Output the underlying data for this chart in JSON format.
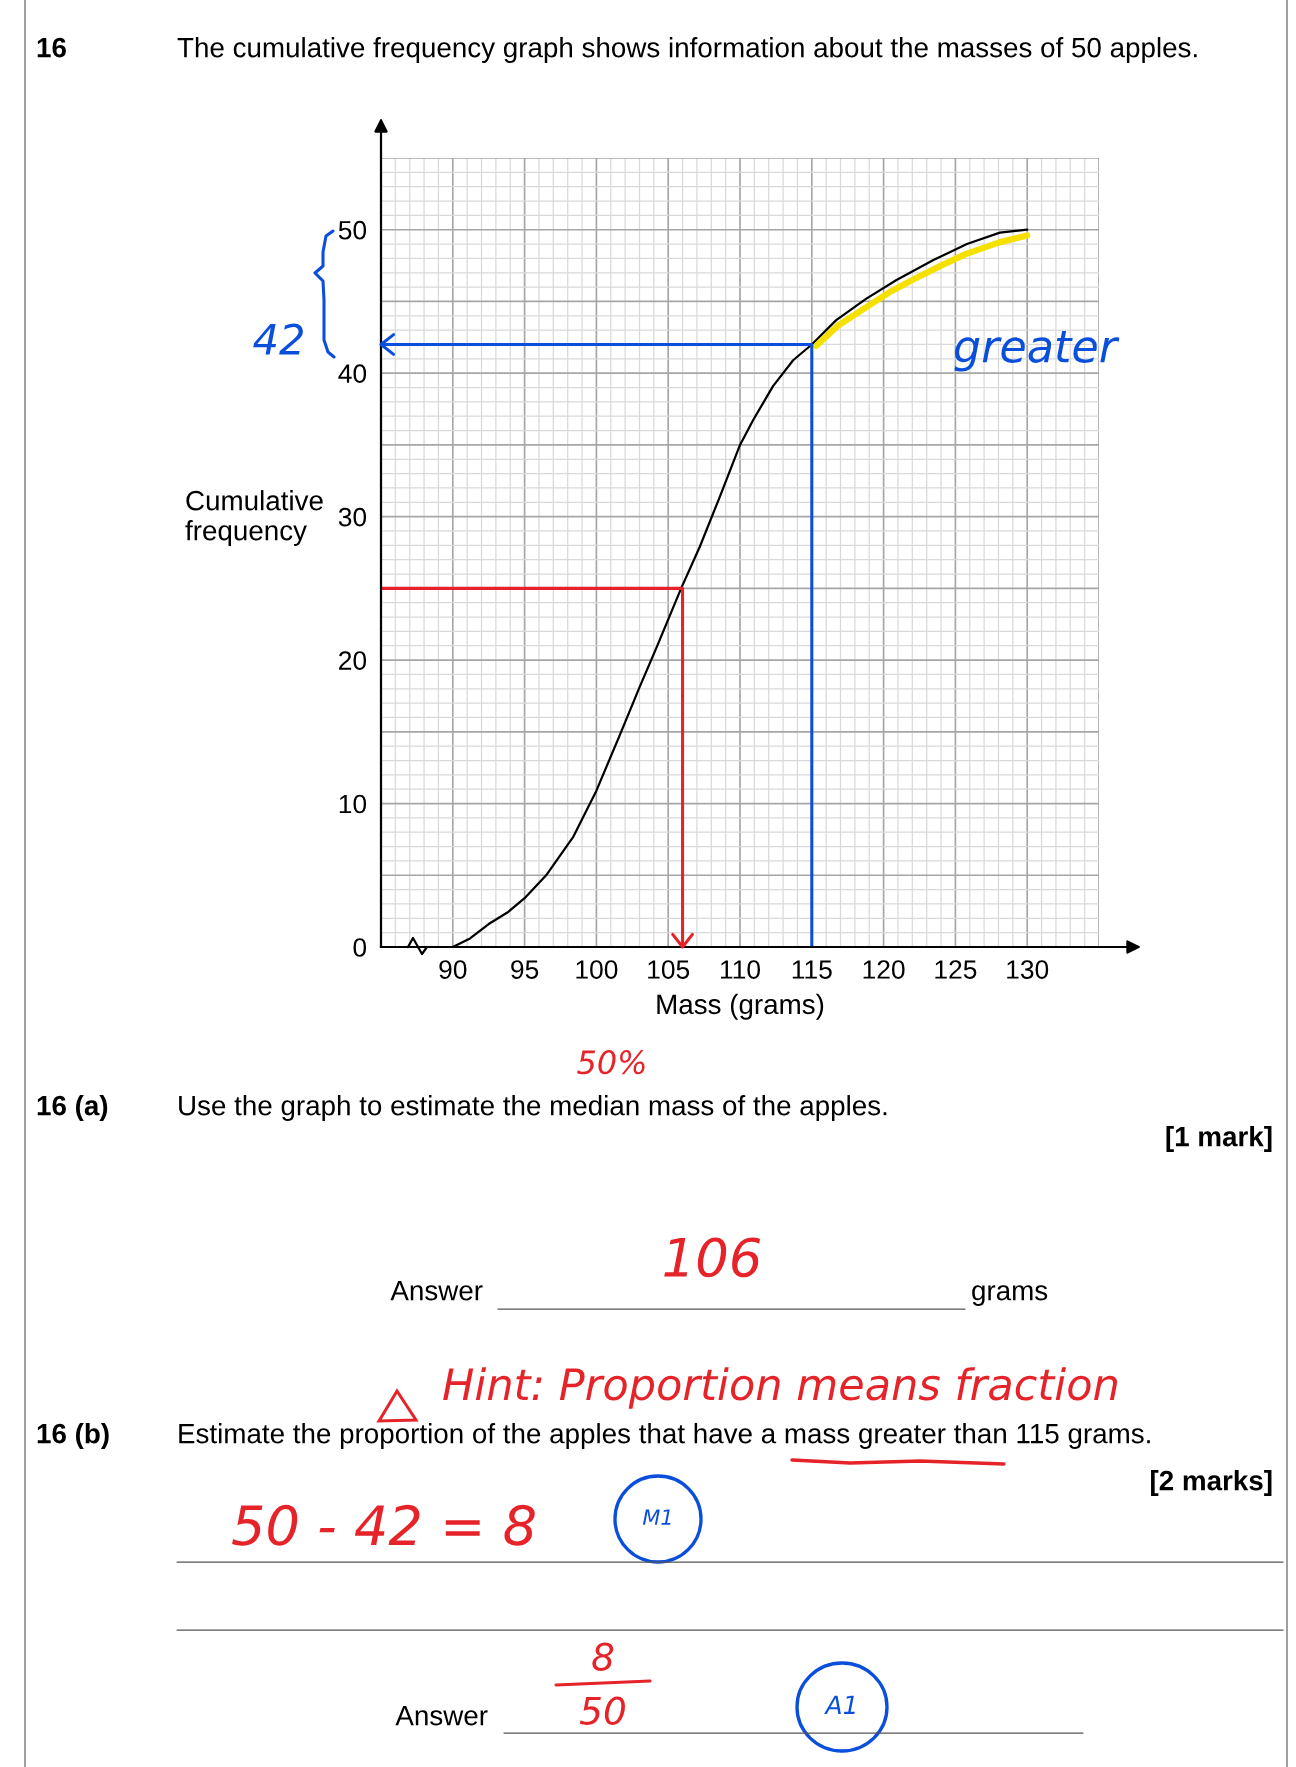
{
  "chart_data": {
    "type": "line",
    "title": "The cumulative frequency graph shows information about the masses of 50 apples.",
    "xlabel": "Mass (grams)",
    "ylabel": "Cumulative\nfrequency",
    "xlim": [
      85,
      135
    ],
    "xticks": [
      90,
      95,
      100,
      105,
      110,
      115,
      120,
      125,
      130
    ],
    "ylim": [
      0,
      55
    ],
    "yticks": [
      0,
      10,
      20,
      30,
      40,
      50
    ],
    "grid": true,
    "series": [
      {
        "color": "#000000",
        "x": [
          90,
          91.2,
          92.5,
          93.8,
          95,
          96.5,
          98.4,
          100,
          101.6,
          103,
          104.2,
          105.9,
          107.2,
          108.6,
          110,
          110.9,
          112.3,
          113.7,
          115,
          116.7,
          118.8,
          120.9,
          123.5,
          125.8,
          128.1,
          130
        ],
        "values": [
          0,
          0.6,
          1.6,
          2.4,
          3.4,
          5,
          7.7,
          10.9,
          14.7,
          18.1,
          20.9,
          25,
          27.9,
          31.4,
          35,
          36.7,
          39.1,
          40.9,
          42,
          43.7,
          45.2,
          46.5,
          47.9,
          49,
          49.8,
          50
        ]
      },
      {
        "color": "#f6e000",
        "x": [
          115.3,
          116.8,
          118.8,
          120.5,
          122.2,
          124,
          125.7,
          128,
          130
        ],
        "values": [
          41.9,
          43.3,
          44.6,
          45.7,
          46.6,
          47.5,
          48.3,
          49.1,
          49.6
        ]
      },
      {
        "color": "#e52329",
        "x": [
          85,
          106,
          106
        ],
        "values": [
          25,
          25,
          0
        ]
      },
      {
        "color": "#0a4fdc",
        "x": [
          115,
          115,
          85
        ],
        "values": [
          0,
          42,
          42
        ]
      }
    ],
    "annotations": [
      "16",
      "16 (a)",
      "Use the graph to estimate the median mass of the apples.",
      "[1 mark]",
      "Answer",
      "grams",
      "16 (b)",
      "Estimate the proportion of the apples that have a mass greater than 115 grams.",
      "[2 marks]",
      "Answer",
      "42",
      "greater",
      "50%",
      "106",
      "Hint: Proportion means fraction",
      "50 - 42 = 8",
      "M1",
      "8",
      "50",
      "A1"
    ]
  }
}
